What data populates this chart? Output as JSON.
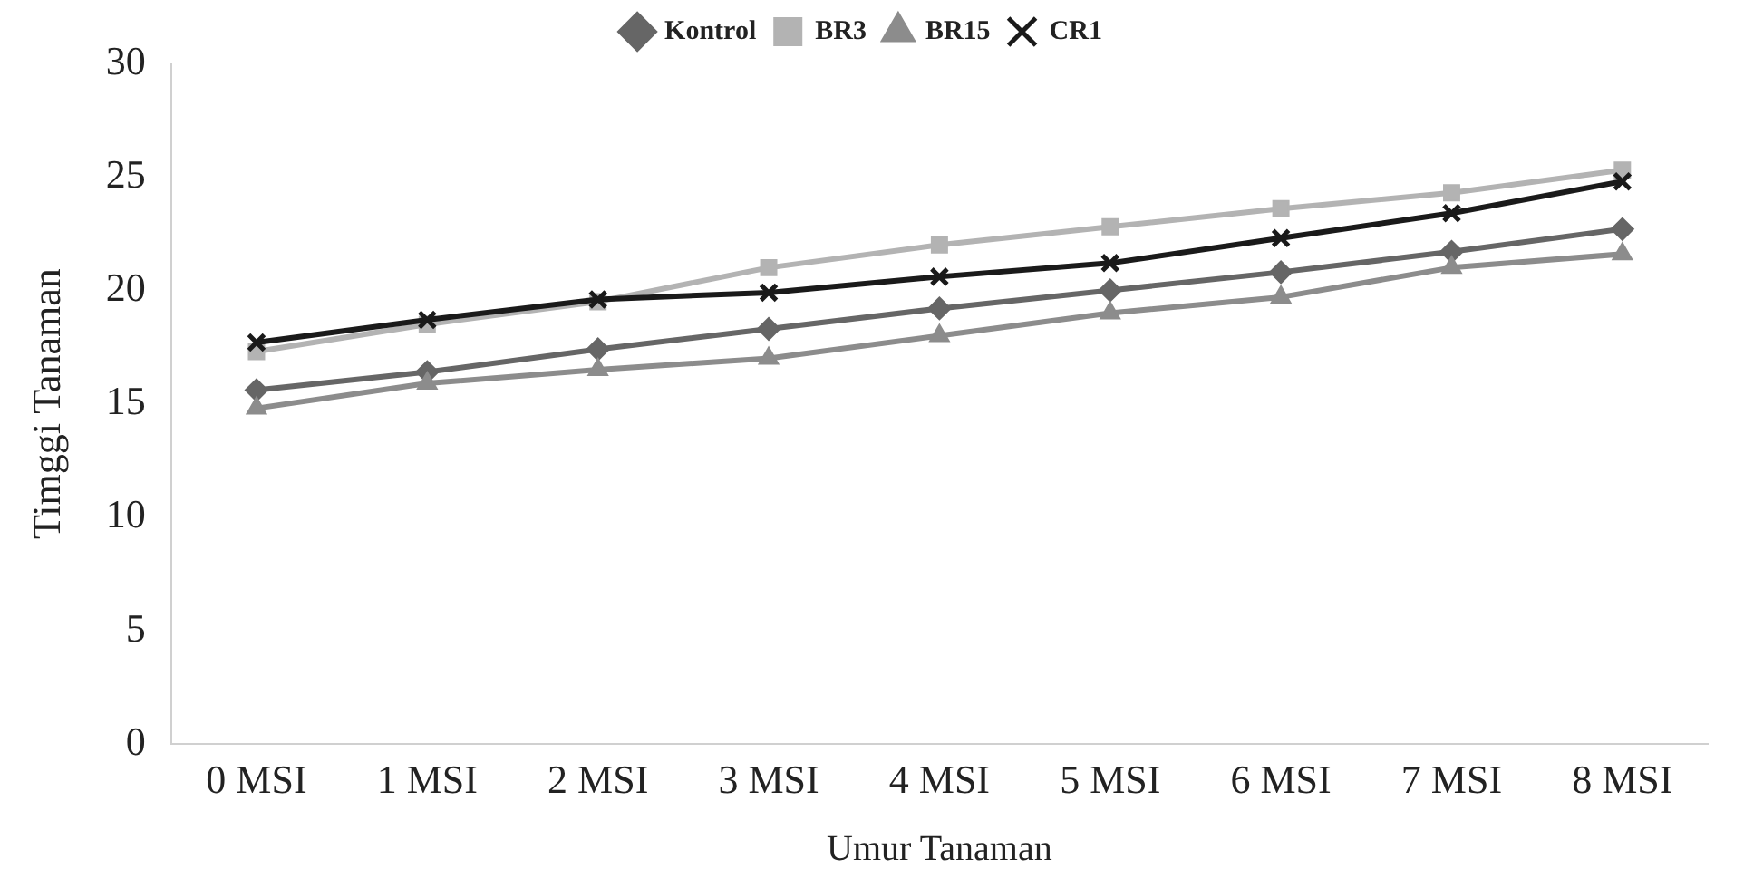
{
  "chart_data": {
    "type": "line",
    "xlabel": "Umur Tanaman",
    "ylabel": "Timggi Tanaman",
    "categories": [
      "0 MSI",
      "1 MSI",
      "2 MSI",
      "3 MSI",
      "4 MSI",
      "5 MSI",
      "6 MSI",
      "7 MSI",
      "8 MSI"
    ],
    "series": [
      {
        "name": "Kontrol",
        "color": "#666666",
        "marker": "diamond",
        "values": [
          15.6,
          16.4,
          17.4,
          18.3,
          19.2,
          20.0,
          20.8,
          21.7,
          22.7
        ]
      },
      {
        "name": "BR3",
        "color": "#b3b3b3",
        "marker": "square",
        "values": [
          17.3,
          18.5,
          19.5,
          21.0,
          22.0,
          22.8,
          23.6,
          24.3,
          25.3
        ]
      },
      {
        "name": "BR15",
        "color": "#8c8c8c",
        "marker": "triangle",
        "values": [
          14.8,
          15.9,
          16.5,
          17.0,
          18.0,
          19.0,
          19.7,
          21.0,
          21.6
        ]
      },
      {
        "name": "CR1",
        "color": "#1a1a1a",
        "marker": "cross",
        "values": [
          17.7,
          18.7,
          19.6,
          19.9,
          20.6,
          21.2,
          22.3,
          23.4,
          24.8
        ]
      }
    ],
    "ylim": [
      0,
      30
    ],
    "yticks": [
      0,
      5,
      10,
      15,
      20,
      25,
      30
    ],
    "grid": false,
    "legend": "top",
    "line_style": "solid"
  }
}
